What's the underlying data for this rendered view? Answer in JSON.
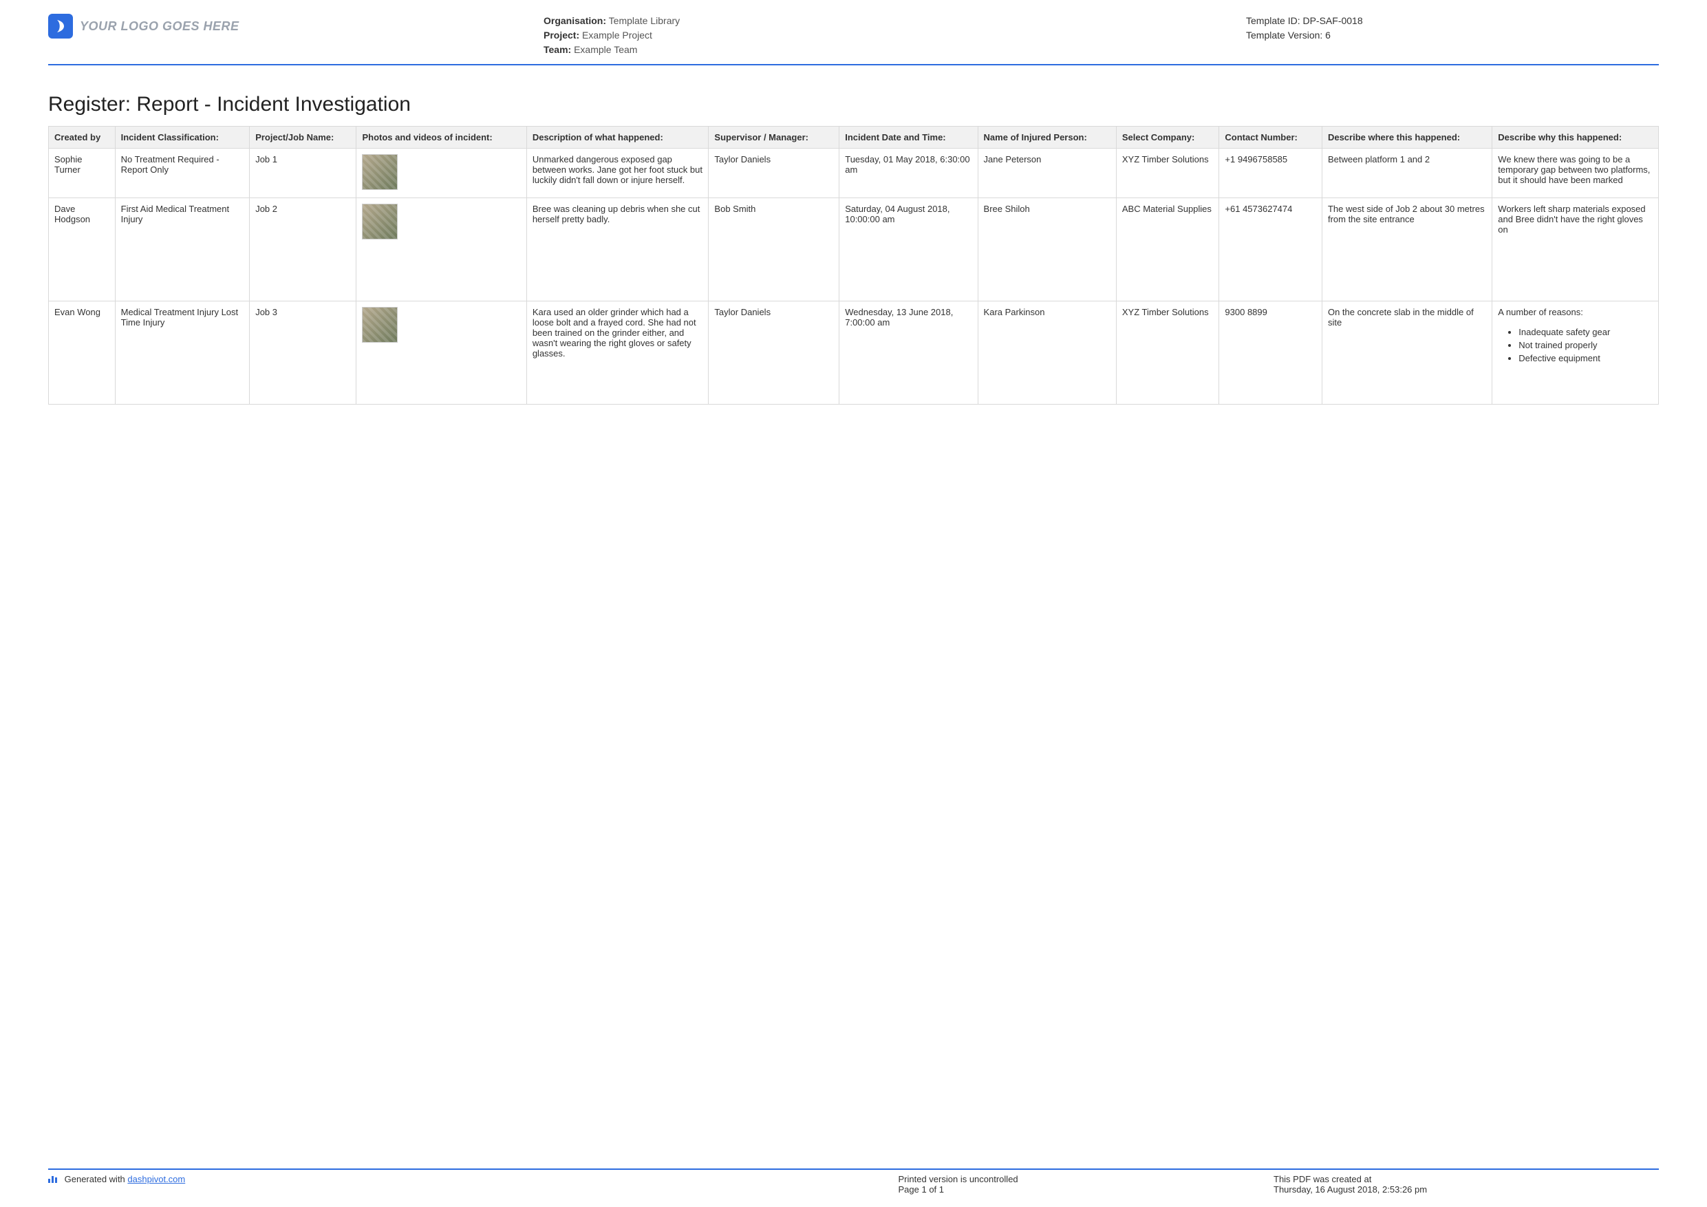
{
  "header": {
    "logo_text": "YOUR LOGO GOES HERE",
    "meta_center": [
      {
        "label": "Organisation:",
        "value": "Template Library"
      },
      {
        "label": "Project:",
        "value": "Example Project"
      },
      {
        "label": "Team:",
        "value": "Example Team"
      }
    ],
    "meta_right": [
      {
        "label": "Template ID:",
        "value": "DP-SAF-0018"
      },
      {
        "label": "Template Version:",
        "value": "6"
      }
    ]
  },
  "title": "Register: Report - Incident Investigation",
  "columns": [
    "Created by",
    "Incident Classification:",
    "Project/Job Name:",
    "Photos and videos of incident:",
    "Description of what happened:",
    "Supervisor / Manager:",
    "Incident Date and Time:",
    "Name of Injured Person:",
    "Select Company:",
    "Contact Number:",
    "Describe where this happened:",
    "Describe why this happened:"
  ],
  "rows": [
    {
      "created_by": "Sophie Turner",
      "classification": "No Treatment Required - Report Only",
      "job": "Job 1",
      "has_photo": true,
      "description": "Unmarked dangerous exposed gap between works. Jane got her foot stuck but luckily didn't fall down or injure herself.",
      "supervisor": "Taylor Daniels",
      "datetime": "Tuesday, 01 May 2018, 6:30:00 am",
      "injured": "Jane Peterson",
      "company": "XYZ Timber Solutions",
      "contact": "+1 9496758585",
      "where": "Between platform 1 and 2",
      "why_text": "We knew there was going to be a temporary gap between two platforms, but it should have been marked",
      "why_bullets": null
    },
    {
      "created_by": "Dave Hodgson",
      "classification": "First Aid   Medical Treatment Injury",
      "job": "Job 2",
      "has_photo": true,
      "description": "Bree was cleaning up debris when she cut herself pretty badly.",
      "supervisor": "Bob Smith",
      "datetime": "Saturday, 04 August 2018, 10:00:00 am",
      "injured": "Bree Shiloh",
      "company": "ABC Material Supplies",
      "contact": "+61 4573627474",
      "where": "The west side of Job 2 about 30 metres from the site entrance",
      "why_text": "Workers left sharp materials exposed and Bree didn't have the right gloves on",
      "why_bullets": null
    },
    {
      "created_by": "Evan Wong",
      "classification": "Medical Treatment Injury   Lost Time Injury",
      "job": "Job 3",
      "has_photo": true,
      "description": "Kara used an older grinder which had a loose bolt and a frayed cord. She had not been trained on the grinder either, and wasn't wearing the right gloves or safety glasses.",
      "supervisor": "Taylor Daniels",
      "datetime": "Wednesday, 13 June 2018, 7:00:00 am",
      "injured": "Kara Parkinson",
      "company": "XYZ Timber Solutions",
      "contact": "9300 8899",
      "where": "On the concrete slab in the middle of site",
      "why_text": "A number of reasons:",
      "why_bullets": [
        "Inadequate safety gear",
        "Not trained properly",
        "Defective equipment"
      ]
    }
  ],
  "row_min_heights": [
    "",
    "150px",
    "150px"
  ],
  "footer": {
    "generated_prefix": "Generated with ",
    "generated_link": "dashpivot.com",
    "center_line1": "Printed version is uncontrolled",
    "center_line2": "Page 1 of 1",
    "right_line1": "This PDF was created at",
    "right_line2": "Thursday, 16 August 2018, 2:53:26 pm"
  }
}
